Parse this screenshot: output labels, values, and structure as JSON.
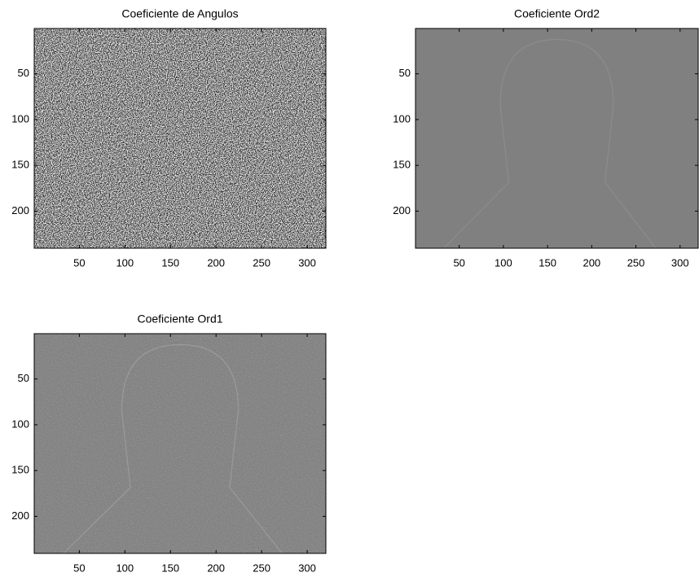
{
  "chart_data": [
    {
      "type": "image",
      "title": "Coeficiente de Angulos",
      "xlim": [
        0.5,
        320.5
      ],
      "ylim": [
        0.5,
        240.5
      ],
      "y_reversed": true,
      "xticks": [
        50,
        100,
        150,
        200,
        250,
        300
      ],
      "yticks": [
        50,
        100,
        150,
        200
      ]
    },
    {
      "type": "image",
      "title": "Coeficiente Ord2",
      "xlim": [
        0.5,
        320.5
      ],
      "ylim": [
        0.5,
        240.5
      ],
      "y_reversed": true,
      "xticks": [
        50,
        100,
        150,
        200,
        250,
        300
      ],
      "yticks": [
        50,
        100,
        150,
        200
      ]
    },
    {
      "type": "image",
      "title": "Coeficiente Ord1",
      "xlim": [
        0.5,
        320.5
      ],
      "ylim": [
        0.5,
        240.5
      ],
      "y_reversed": true,
      "xticks": [
        50,
        100,
        150,
        200,
        250,
        300
      ],
      "yticks": [
        50,
        100,
        150,
        200
      ]
    }
  ]
}
